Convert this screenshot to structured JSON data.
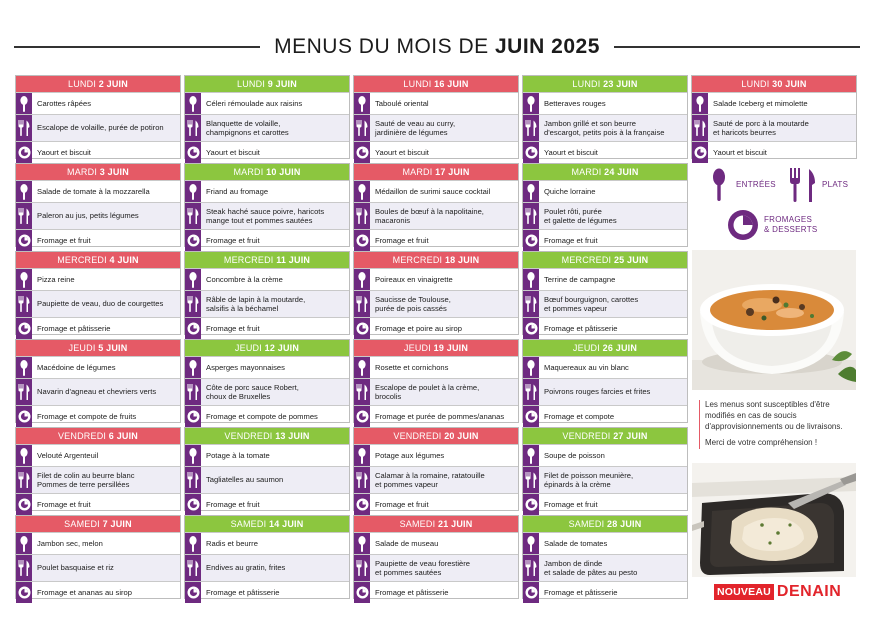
{
  "title": {
    "main": "MENUS DU MOIS DE ",
    "bold": "JUIN 2025"
  },
  "colors": {
    "red": "#e55a66",
    "green": "#8cc63f",
    "purple": "#6e2a80",
    "brand": "#e2242b"
  },
  "columns": [
    [
      {
        "day": "LUNDI",
        "num": "2 JUIN",
        "color": "red",
        "starter": "Carottes râpées",
        "main": "Escalope de volaille, purée de potiron",
        "dessert": "Yaourt et biscuit"
      },
      {
        "day": "MARDI",
        "num": "3 JUIN",
        "color": "red",
        "starter": "Salade de tomate à la mozzarella",
        "main": "Paleron au jus, petits légumes",
        "dessert": "Fromage et fruit"
      },
      {
        "day": "MERCREDI",
        "num": "4 JUIN",
        "color": "red",
        "starter": "Pizza reine",
        "main": "Paupiette de veau, duo de courgettes",
        "dessert": "Fromage et pâtisserie"
      },
      {
        "day": "JEUDI",
        "num": "5 JUIN",
        "color": "red",
        "starter": "Macédoine de légumes",
        "main": "Navarin d'agneau et chevriers verts",
        "dessert": "Fromage et compote de fruits"
      },
      {
        "day": "VENDREDI",
        "num": "6 JUIN",
        "color": "red",
        "starter": "Velouté Argenteuil",
        "main": "Filet de colin au beurre blanc\nPommes de terre persillées",
        "dessert": "Fromage et fruit"
      },
      {
        "day": "SAMEDI",
        "num": "7 JUIN",
        "color": "red",
        "starter": "Jambon sec, melon",
        "main": "Poulet basquaise et riz",
        "dessert": "Fromage et ananas au sirop"
      }
    ],
    [
      {
        "day": "LUNDI",
        "num": "9 JUIN",
        "color": "green",
        "starter": "Céleri rémoulade aux raisins",
        "main": "Blanquette de volaille,\nchampignons et carottes",
        "dessert": "Yaourt et biscuit"
      },
      {
        "day": "MARDI",
        "num": "10 JUIN",
        "color": "green",
        "starter": "Friand au fromage",
        "main": "Steak haché sauce poivre, haricots\nmange tout et pommes sautées",
        "dessert": "Fromage et fruit"
      },
      {
        "day": "MERCREDI",
        "num": "11 JUIN",
        "color": "green",
        "starter": "Concombre à la crème",
        "main": "Râble de lapin à la moutarde,\nsalsifis à la béchamel",
        "dessert": "Fromage et fruit"
      },
      {
        "day": "JEUDI",
        "num": "12 JUIN",
        "color": "green",
        "starter": "Asperges mayonnaises",
        "main": "Côte de porc sauce Robert,\nchoux de Bruxelles",
        "dessert": "Fromage et compote de pommes"
      },
      {
        "day": "VENDREDI",
        "num": "13 JUIN",
        "color": "green",
        "starter": "Potage à la tomate",
        "main": "Tagliatelles au saumon",
        "dessert": "Fromage et fruit"
      },
      {
        "day": "SAMEDI",
        "num": "14 JUIN",
        "color": "green",
        "starter": "Radis et beurre",
        "main": "Endives au gratin, frites",
        "dessert": "Fromage et pâtisserie"
      }
    ],
    [
      {
        "day": "LUNDI",
        "num": "16 JUIN",
        "color": "red",
        "starter": "Taboulé oriental",
        "main": "Sauté de veau au curry,\njardinière de légumes",
        "dessert": "Yaourt et biscuit"
      },
      {
        "day": "MARDI",
        "num": "17 JUIN",
        "color": "red",
        "starter": "Médaillon de surimi sauce cocktail",
        "main": "Boules de bœuf à la napolitaine,\nmacaronis",
        "dessert": "Fromage et fruit"
      },
      {
        "day": "MERCREDI",
        "num": "18 JUIN",
        "color": "red",
        "starter": "Poireaux en vinaigrette",
        "main": "Saucisse de Toulouse,\npurée de pois cassés",
        "dessert": "Fromage et poire au sirop"
      },
      {
        "day": "JEUDI",
        "num": "19 JUIN",
        "color": "red",
        "starter": "Rosette et cornichons",
        "main": "Escalope de poulet à la crème,\nbrocolis",
        "dessert": "Fromage et purée de pommes/ananas"
      },
      {
        "day": "VENDREDI",
        "num": "20 JUIN",
        "color": "red",
        "starter": "Potage aux légumes",
        "main": "Calamar à la romaine, ratatouille\net pommes vapeur",
        "dessert": "Fromage et fruit"
      },
      {
        "day": "SAMEDI",
        "num": "21 JUIN",
        "color": "red",
        "starter": "Salade de museau",
        "main": "Paupiette de veau forestière\net pommes sautées",
        "dessert": "Fromage et pâtisserie"
      }
    ],
    [
      {
        "day": "LUNDI",
        "num": "23 JUIN",
        "color": "green",
        "starter": "Betteraves rouges",
        "main": "Jambon grillé et son beurre\nd'escargot, petits pois à la française",
        "dessert": "Yaourt et biscuit"
      },
      {
        "day": "MARDI",
        "num": "24 JUIN",
        "color": "green",
        "starter": "Quiche lorraine",
        "main": "Poulet rôti, purée\net galette de légumes",
        "dessert": "Fromage et fruit"
      },
      {
        "day": "MERCREDI",
        "num": "25 JUIN",
        "color": "green",
        "starter": "Terrine de campagne",
        "main": "Bœuf bourguignon, carottes\net pommes vapeur",
        "dessert": "Fromage et pâtisserie"
      },
      {
        "day": "JEUDI",
        "num": "26 JUIN",
        "color": "green",
        "starter": "Maquereaux au vin blanc",
        "main": "Poivrons rouges farcies et frites",
        "dessert": "Fromage et compote"
      },
      {
        "day": "VENDREDI",
        "num": "27 JUIN",
        "color": "green",
        "starter": "Soupe de poisson",
        "main": "Filet de poisson meunière,\népinards à la crème",
        "dessert": "Fromage et fruit"
      },
      {
        "day": "SAMEDI",
        "num": "28 JUIN",
        "color": "green",
        "starter": "Salade de tomates",
        "main": "Jambon de dinde\net salade de pâtes au pesto",
        "dessert": "Fromage et pâtisserie"
      }
    ],
    [
      {
        "day": "LUNDI",
        "num": "30 JUIN",
        "color": "red",
        "starter": "Salade Iceberg et mimolette",
        "main": "Sauté de porc à la moutarde\net haricots beurres",
        "dessert": "Yaourt et biscuit"
      }
    ]
  ],
  "legend": {
    "starters": "ENTRÉES",
    "mains": "PLATS",
    "desserts": "FROMAGES\n& DESSERTS"
  },
  "note": {
    "line1": "Les menus sont susceptibles d'être modifiés en cas de soucis d'approvisionnements ou de livraisons.",
    "line2": "Merci de votre compréhension !"
  },
  "brand": {
    "nouveau": "NOUVEAU",
    "name": "DENAIN"
  }
}
